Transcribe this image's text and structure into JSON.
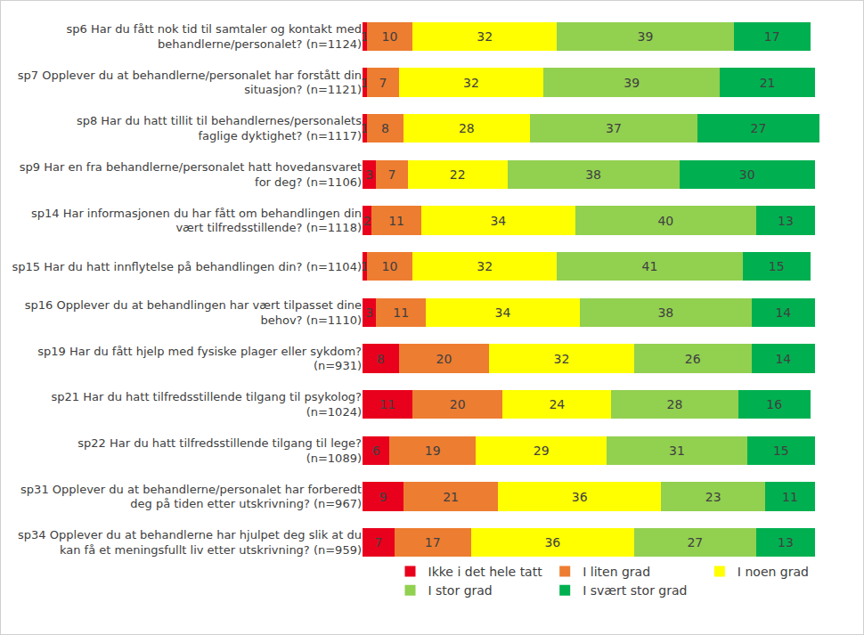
{
  "chart_data": {
    "type": "bar",
    "orientation": "horizontal",
    "stacked": true,
    "data_labels": true,
    "tick_labels": "y",
    "grid": false,
    "legend": "bottom",
    "categories": [
      "sp6 Har du fått nok tid til samtaler og kontakt med behandlerne/personalet? (n=1124)",
      "sp7 Opplever du at behandlerne/personalet har forstått din situasjon? (n=1121)",
      "sp8 Har du hatt tillit til behandlernes/personalets faglige dyktighet? (n=1117)",
      "sp9 Har en fra behandlerne/personalet hatt hovedansvaret for deg? (n=1106)",
      "sp14 Har informasjonen du har fått om behandlingen din vært tilfredsstillende? (n=1118)",
      "sp15 Har du hatt innflytelse på behandlingen din? (n=1104)",
      "sp16 Opplever du at behandlingen har vært tilpasset dine behov? (n=1110)",
      "sp19 Har du fått hjelp med fysiske plager eller sykdom? (n=931)",
      "sp21 Har du hatt tilfredsstillende tilgang til psykolog? (n=1024)",
      "sp22 Har du hatt tilfredsstillende tilgang til lege? (n=1089)",
      "sp31 Opplever du at behandlerne/personalet har forberedt deg på tiden etter utskrivning? (n=967)",
      "sp34 Opplever du at behandlerne har hjulpet deg slik at du kan få et meningsfullt liv etter utskrivning? (n=959)"
    ],
    "series": [
      {
        "name": "Ikke i det hele tatt",
        "color": "#e8001c",
        "values": [
          1,
          1,
          1,
          3,
          2,
          1,
          3,
          8,
          11,
          6,
          9,
          7
        ]
      },
      {
        "name": "I liten grad",
        "color": "#ed7d31",
        "values": [
          10,
          7,
          8,
          7,
          11,
          10,
          11,
          20,
          20,
          19,
          21,
          17
        ]
      },
      {
        "name": "I noen grad",
        "color": "#ffff00",
        "values": [
          32,
          32,
          28,
          22,
          34,
          32,
          34,
          32,
          24,
          29,
          36,
          36
        ]
      },
      {
        "name": "I stor grad",
        "color": "#92d050",
        "values": [
          39,
          39,
          37,
          38,
          40,
          41,
          38,
          26,
          28,
          31,
          23,
          27
        ]
      },
      {
        "name": "I svært stor grad",
        "color": "#00b050",
        "values": [
          17,
          21,
          27,
          30,
          13,
          15,
          14,
          14,
          16,
          15,
          11,
          13
        ]
      }
    ]
  }
}
